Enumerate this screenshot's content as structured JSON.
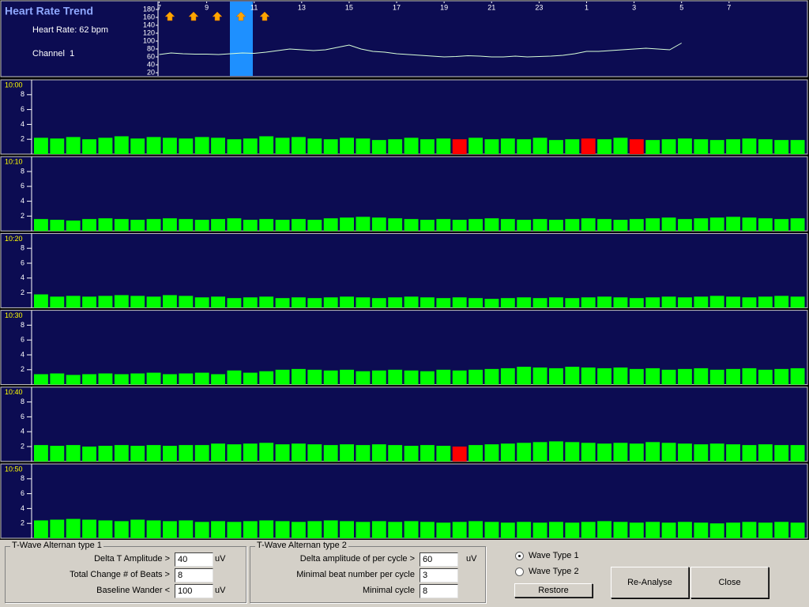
{
  "header": {
    "title": "Heart Rate Trend",
    "heart_rate": "Heart Rate: 62 bpm",
    "channel": "Channel  1"
  },
  "chart_data": [
    {
      "type": "line",
      "color": "#d8ffd8",
      "ylim": [
        10,
        190
      ],
      "yticks": [
        180,
        160,
        140,
        120,
        100,
        80,
        60,
        40,
        20
      ],
      "xlim": [
        -0.05,
        27.3
      ],
      "xticks": [
        {
          "value": 0,
          "label": "7"
        },
        {
          "value": 2,
          "label": "9"
        },
        {
          "value": 4,
          "label": "11"
        },
        {
          "value": 6,
          "label": "13"
        },
        {
          "value": 8,
          "label": "15"
        },
        {
          "value": 10,
          "label": "17"
        },
        {
          "value": 12,
          "label": "19"
        },
        {
          "value": 14,
          "label": "21"
        },
        {
          "value": 16,
          "label": "23"
        },
        {
          "value": 18,
          "label": "1"
        },
        {
          "value": 20,
          "label": "3"
        },
        {
          "value": 22,
          "label": "5"
        },
        {
          "value": 24,
          "label": "7"
        }
      ],
      "x": [
        0,
        0.5,
        1,
        1.5,
        2,
        2.5,
        3,
        3.5,
        4,
        4.5,
        5,
        5.5,
        6,
        6.5,
        7,
        7.5,
        8,
        8.5,
        9,
        9.5,
        10,
        10.5,
        11,
        11.5,
        12,
        12.5,
        13,
        13.5,
        14,
        14.5,
        15,
        15.5,
        16,
        16.5,
        17,
        17.5,
        18,
        18.5,
        19,
        19.5,
        20,
        20.5,
        21,
        21.5,
        22
      ],
      "values": [
        66,
        70,
        68,
        67,
        67,
        66,
        68,
        70,
        69,
        72,
        76,
        80,
        78,
        76,
        78,
        84,
        90,
        80,
        74,
        72,
        68,
        66,
        64,
        62,
        60,
        61,
        63,
        62,
        60,
        60,
        62,
        60,
        61,
        62,
        64,
        68,
        74,
        74,
        76,
        78,
        80,
        82,
        80,
        78,
        95
      ]
    },
    {
      "type": "bar",
      "title": "10:00",
      "ylim": [
        0,
        10
      ],
      "yticks": [
        8,
        6,
        4,
        2
      ],
      "color": "#00ff00",
      "flag_color": "#ff0000",
      "flagged": [
        26,
        34,
        37
      ],
      "values": [
        2.2,
        2.1,
        2.3,
        2.0,
        2.2,
        2.4,
        2.1,
        2.3,
        2.2,
        2.1,
        2.3,
        2.2,
        2.0,
        2.1,
        2.4,
        2.2,
        2.3,
        2.1,
        2.0,
        2.2,
        2.1,
        1.9,
        2.0,
        2.2,
        2.0,
        2.1,
        2.0,
        2.2,
        2.0,
        2.1,
        2.0,
        2.2,
        1.9,
        2.0,
        2.1,
        2.0,
        2.2,
        2.0,
        1.9,
        2.0,
        2.1,
        2.0,
        1.9,
        2.0,
        2.1,
        2.0,
        1.9,
        1.9
      ]
    },
    {
      "type": "bar",
      "title": "10:10",
      "ylim": [
        0,
        10
      ],
      "yticks": [
        8,
        6,
        4,
        2
      ],
      "color": "#00ff00",
      "flag_color": "#ff0000",
      "flagged": [],
      "values": [
        1.6,
        1.5,
        1.4,
        1.6,
        1.7,
        1.6,
        1.5,
        1.6,
        1.7,
        1.6,
        1.5,
        1.6,
        1.7,
        1.5,
        1.6,
        1.5,
        1.6,
        1.5,
        1.7,
        1.8,
        1.9,
        1.8,
        1.7,
        1.6,
        1.5,
        1.6,
        1.5,
        1.6,
        1.7,
        1.6,
        1.5,
        1.6,
        1.5,
        1.6,
        1.7,
        1.6,
        1.5,
        1.6,
        1.7,
        1.8,
        1.6,
        1.7,
        1.8,
        1.9,
        1.8,
        1.7,
        1.6,
        1.7
      ]
    },
    {
      "type": "bar",
      "title": "10:20",
      "ylim": [
        0,
        10
      ],
      "yticks": [
        8,
        6,
        4,
        2
      ],
      "color": "#00ff00",
      "flag_color": "#ff0000",
      "flagged": [],
      "values": [
        1.8,
        1.5,
        1.6,
        1.5,
        1.6,
        1.7,
        1.6,
        1.5,
        1.7,
        1.6,
        1.4,
        1.5,
        1.3,
        1.4,
        1.5,
        1.3,
        1.4,
        1.3,
        1.4,
        1.5,
        1.4,
        1.3,
        1.4,
        1.5,
        1.4,
        1.3,
        1.4,
        1.3,
        1.2,
        1.3,
        1.4,
        1.3,
        1.4,
        1.3,
        1.4,
        1.5,
        1.4,
        1.3,
        1.4,
        1.5,
        1.4,
        1.5,
        1.6,
        1.5,
        1.4,
        1.5,
        1.6,
        1.5
      ]
    },
    {
      "type": "bar",
      "title": "10:30",
      "ylim": [
        0,
        10
      ],
      "yticks": [
        8,
        6,
        4,
        2
      ],
      "color": "#00ff00",
      "flag_color": "#ff0000",
      "flagged": [],
      "values": [
        1.4,
        1.5,
        1.3,
        1.4,
        1.5,
        1.4,
        1.5,
        1.6,
        1.4,
        1.5,
        1.6,
        1.4,
        1.9,
        1.6,
        1.8,
        2.0,
        2.1,
        2.0,
        1.9,
        2.0,
        1.8,
        1.9,
        2.0,
        1.9,
        1.8,
        2.0,
        1.9,
        2.0,
        2.1,
        2.2,
        2.4,
        2.3,
        2.2,
        2.4,
        2.3,
        2.2,
        2.3,
        2.1,
        2.2,
        2.0,
        2.1,
        2.2,
        2.0,
        2.1,
        2.2,
        2.0,
        2.1,
        2.2
      ]
    },
    {
      "type": "bar",
      "title": "10:40",
      "ylim": [
        0,
        10
      ],
      "yticks": [
        8,
        6,
        4,
        2
      ],
      "color": "#00ff00",
      "flag_color": "#ff0000",
      "flagged": [
        26
      ],
      "values": [
        2.2,
        2.1,
        2.2,
        2.0,
        2.1,
        2.2,
        2.1,
        2.2,
        2.1,
        2.2,
        2.2,
        2.4,
        2.3,
        2.4,
        2.5,
        2.3,
        2.4,
        2.3,
        2.2,
        2.3,
        2.2,
        2.3,
        2.2,
        2.1,
        2.2,
        2.1,
        2.0,
        2.2,
        2.3,
        2.4,
        2.5,
        2.6,
        2.7,
        2.6,
        2.5,
        2.4,
        2.5,
        2.4,
        2.6,
        2.5,
        2.4,
        2.3,
        2.4,
        2.3,
        2.2,
        2.3,
        2.2,
        2.2
      ]
    },
    {
      "type": "bar",
      "title": "10:50",
      "ylim": [
        0,
        10
      ],
      "yticks": [
        8,
        6,
        4,
        2
      ],
      "color": "#00ff00",
      "flag_color": "#ff0000",
      "flagged": [],
      "values": [
        2.4,
        2.5,
        2.6,
        2.5,
        2.4,
        2.3,
        2.5,
        2.4,
        2.3,
        2.4,
        2.2,
        2.3,
        2.2,
        2.3,
        2.4,
        2.3,
        2.2,
        2.3,
        2.4,
        2.3,
        2.2,
        2.3,
        2.2,
        2.3,
        2.2,
        2.1,
        2.2,
        2.3,
        2.2,
        2.1,
        2.2,
        2.1,
        2.2,
        2.1,
        2.2,
        2.3,
        2.2,
        2.1,
        2.2,
        2.1,
        2.2,
        2.1,
        2.0,
        2.1,
        2.2,
        2.1,
        2.2,
        2.1
      ]
    }
  ],
  "form": {
    "group1": {
      "title": "T-Wave Alternan type 1",
      "fields": [
        {
          "label": "Delta T Amplitude >",
          "value": "40",
          "unit": "uV"
        },
        {
          "label": "Total Change # of Beats >",
          "value": "8"
        },
        {
          "label": "Baseline Wander <",
          "value": "100",
          "unit": "uV"
        }
      ]
    },
    "group2": {
      "title": "T-Wave Alternan type 2",
      "fields": [
        {
          "label": "Delta amplitude of per cycle >",
          "value": "60",
          "unit": "uV"
        },
        {
          "label": "Minimal beat number per cycle",
          "value": "3"
        },
        {
          "label": "Minimal cycle",
          "value": "8"
        }
      ]
    },
    "radios": [
      "Wave Type 1",
      "Wave Type 2"
    ],
    "buttons": {
      "restore": "Restore",
      "reanalyse": "Re-Analyse",
      "close": "Close"
    }
  }
}
